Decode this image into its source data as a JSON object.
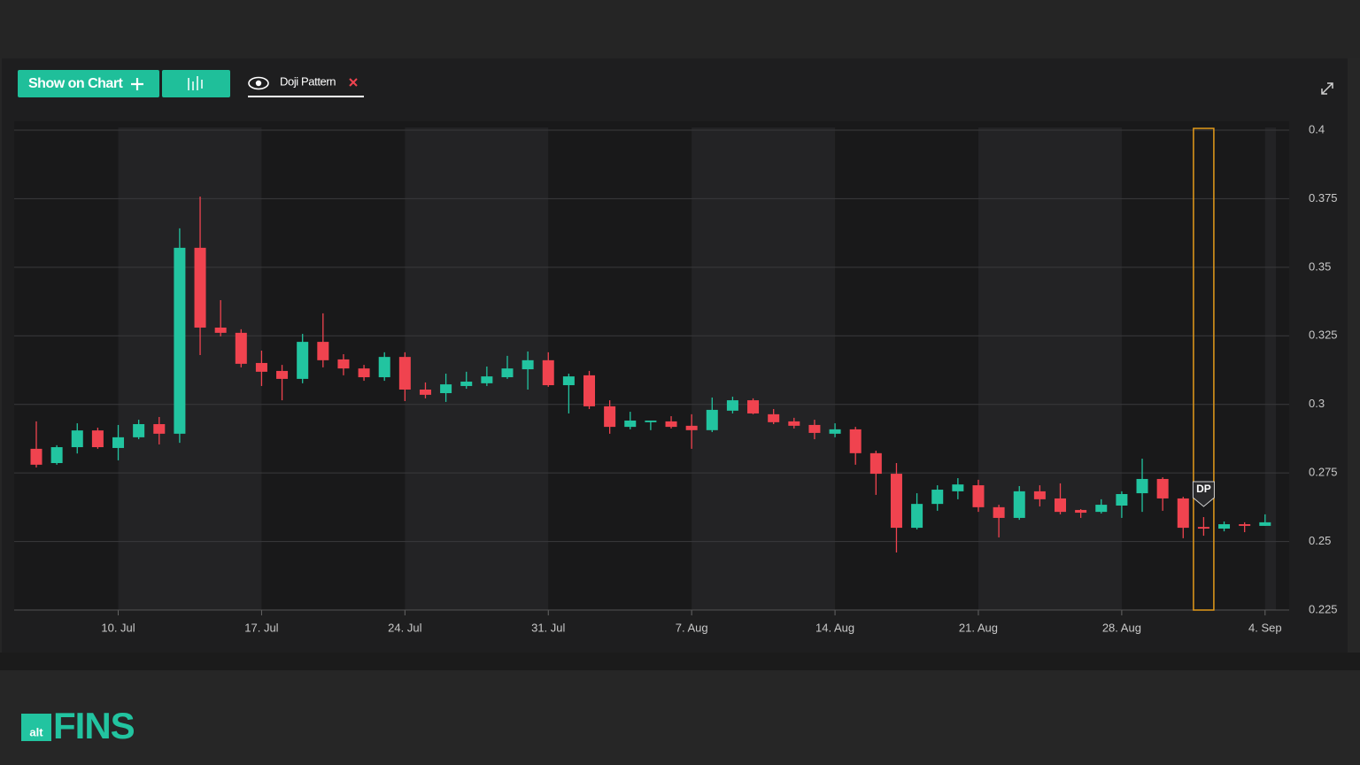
{
  "toolbar": {
    "button": "Show on Chart",
    "indicator": "Doji Pattern"
  },
  "logo": {
    "badge": "alt",
    "name": "FINS"
  },
  "chart_data": {
    "type": "candlestick",
    "x": [
      "6. Jul",
      "7. Jul",
      "8. Jul",
      "9. Jul",
      "10. Jul",
      "11. Jul",
      "12. Jul",
      "13. Jul",
      "14. Jul",
      "15. Jul",
      "16. Jul",
      "17. Jul",
      "18. Jul",
      "19. Jul",
      "20. Jul",
      "21. Jul",
      "22. Jul",
      "23. Jul",
      "24. Jul",
      "25. Jul",
      "26. Jul",
      "27. Jul",
      "28. Jul",
      "29. Jul",
      "30. Jul",
      "31. Jul",
      "1. Aug",
      "2. Aug",
      "3. Aug",
      "4. Aug",
      "5. Aug",
      "6. Aug",
      "7. Aug",
      "8. Aug",
      "9. Aug",
      "10. Aug",
      "11. Aug",
      "12. Aug",
      "13. Aug",
      "14. Aug",
      "15. Aug",
      "16. Aug",
      "17. Aug",
      "18. Aug",
      "19. Aug",
      "20. Aug",
      "21. Aug",
      "22. Aug",
      "23. Aug",
      "24. Aug",
      "25. Aug",
      "26. Aug",
      "27. Aug",
      "28. Aug",
      "29. Aug",
      "30. Aug",
      "31. Aug",
      "1. Sep",
      "2. Sep",
      "3. Sep",
      "4. Sep"
    ],
    "open": [
      0.2838,
      0.2786,
      0.2844,
      0.2905,
      0.2841,
      0.288,
      0.2928,
      0.2893,
      0.3571,
      0.328,
      0.3261,
      0.3151,
      0.3122,
      0.3093,
      0.3228,
      0.3164,
      0.3131,
      0.3099,
      0.3173,
      0.3054,
      0.3041,
      0.3067,
      0.3077,
      0.3099,
      0.3128,
      0.3161,
      0.307,
      0.3106,
      0.2993,
      0.2918,
      0.2935,
      0.2938,
      0.2922,
      0.2906,
      0.2977,
      0.3015,
      0.2964,
      0.2938,
      0.2925,
      0.2893,
      0.2909,
      0.2822,
      0.2747,
      0.255,
      0.2637,
      0.2683,
      0.2705,
      0.2625,
      0.2586,
      0.2683,
      0.2657,
      0.2615,
      0.2608,
      0.2631,
      0.2676,
      0.2728,
      0.2657,
      0.2553,
      0.2547,
      0.2563,
      0.2557
    ],
    "high": [
      0.2938,
      0.2851,
      0.2931,
      0.2915,
      0.2925,
      0.2944,
      0.2954,
      0.3642,
      0.3758,
      0.338,
      0.3274,
      0.3196,
      0.3144,
      0.3257,
      0.3332,
      0.3183,
      0.3144,
      0.319,
      0.319,
      0.308,
      0.3112,
      0.3119,
      0.3138,
      0.3177,
      0.3193,
      0.319,
      0.3112,
      0.3122,
      0.3015,
      0.2973,
      0.2941,
      0.2957,
      0.2964,
      0.3025,
      0.3028,
      0.3022,
      0.2983,
      0.2951,
      0.2944,
      0.2931,
      0.2918,
      0.2831,
      0.2786,
      0.2676,
      0.2705,
      0.2731,
      0.2725,
      0.2634,
      0.2702,
      0.2705,
      0.2712,
      0.2618,
      0.2654,
      0.2683,
      0.2802,
      0.2734,
      0.2663,
      0.2589,
      0.2573,
      0.257,
      0.2599
    ],
    "low": [
      0.277,
      0.278,
      0.2821,
      0.2838,
      0.2796,
      0.2873,
      0.2854,
      0.286,
      0.318,
      0.3248,
      0.3135,
      0.3067,
      0.3015,
      0.3077,
      0.3135,
      0.3106,
      0.3086,
      0.3086,
      0.3012,
      0.3022,
      0.3009,
      0.3057,
      0.3067,
      0.3093,
      0.3054,
      0.3064,
      0.2967,
      0.2983,
      0.2893,
      0.2909,
      0.2906,
      0.2912,
      0.2838,
      0.2899,
      0.2967,
      0.2964,
      0.2928,
      0.2912,
      0.2873,
      0.288,
      0.278,
      0.267,
      0.246,
      0.2544,
      0.2612,
      0.2654,
      0.2608,
      0.2515,
      0.2579,
      0.2628,
      0.2599,
      0.2586,
      0.2602,
      0.2586,
      0.2608,
      0.2612,
      0.2512,
      0.2521,
      0.2537,
      0.2534,
      0.2557
    ],
    "close": [
      0.278,
      0.2844,
      0.2905,
      0.2844,
      0.288,
      0.2928,
      0.2893,
      0.3571,
      0.328,
      0.3261,
      0.3148,
      0.3119,
      0.3093,
      0.3228,
      0.3161,
      0.3131,
      0.3099,
      0.3173,
      0.3054,
      0.3035,
      0.3073,
      0.3083,
      0.3102,
      0.3131,
      0.3161,
      0.307,
      0.3102,
      0.2993,
      0.2918,
      0.2941,
      0.2941,
      0.2918,
      0.2906,
      0.298,
      0.3015,
      0.2967,
      0.2935,
      0.2922,
      0.2896,
      0.2909,
      0.2822,
      0.2747,
      0.255,
      0.2637,
      0.2689,
      0.2708,
      0.2625,
      0.2586,
      0.2683,
      0.2654,
      0.2608,
      0.2605,
      0.2634,
      0.2673,
      0.2728,
      0.2657,
      0.255,
      0.2547,
      0.2563,
      0.2557,
      0.257
    ],
    "up_color": "#22c4a0",
    "down_color": "#f0434f",
    "ylim": [
      0.225,
      0.4
    ],
    "yticks": [
      0.225,
      0.25,
      0.275,
      0.3,
      0.325,
      0.35,
      0.375,
      0.4
    ],
    "xticks": [
      "10. Jul",
      "17. Jul",
      "24. Jul",
      "31. Jul",
      "7. Aug",
      "14. Aug",
      "21. Aug",
      "28. Aug",
      "4. Sep"
    ],
    "grid": true,
    "annotations": [
      {
        "x": "1. Sep",
        "text": "DP",
        "color": "#e39a1b"
      }
    ]
  }
}
